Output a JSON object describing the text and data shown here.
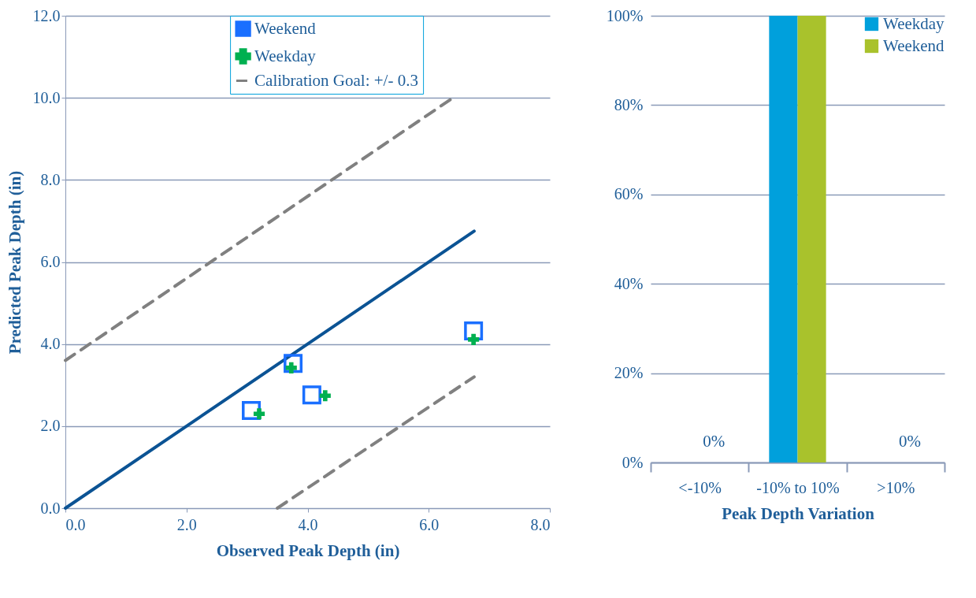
{
  "chart_data": [
    {
      "type": "scatter",
      "xlabel": "Observed Peak Depth (in)",
      "ylabel": "Predicted Peak Depth (in)",
      "xlim": [
        0,
        8
      ],
      "xticks": [
        {
          "value": 0,
          "label": "0.0"
        },
        {
          "value": 2,
          "label": "2.0"
        },
        {
          "value": 4,
          "label": "4.0"
        },
        {
          "value": 6,
          "label": "6.0"
        },
        {
          "value": 8,
          "label": "8.0"
        }
      ],
      "ylim": [
        0,
        12
      ],
      "yticks": [
        {
          "value": 0,
          "label": "0.0"
        },
        {
          "value": 2,
          "label": "2.0"
        },
        {
          "value": 4,
          "label": "4.0"
        },
        {
          "value": 6,
          "label": "6.0"
        },
        {
          "value": 8,
          "label": "8.0"
        },
        {
          "value": 10,
          "label": "10.0"
        },
        {
          "value": 12,
          "label": "12.0"
        }
      ],
      "grid": "y",
      "legend": "top",
      "series": [
        {
          "type": "scatter",
          "name": "Weekend",
          "color": "#1a6fff",
          "marker": "square",
          "x": [
            3.07,
            3.76,
            4.07,
            6.74
          ],
          "values": [
            2.38,
            3.53,
            2.76,
            4.32
          ]
        },
        {
          "type": "scatter",
          "name": "Weekday",
          "color": "#00b050",
          "marker": "cross",
          "x": [
            3.2,
            3.73,
            4.29,
            6.74
          ],
          "values": [
            2.3,
            3.42,
            2.74,
            4.11
          ]
        },
        {
          "type": "line",
          "name": "Calibration Goal: +/- 0.3",
          "color": "#808080",
          "line_style": "dashed",
          "x": [
            0,
            6.4
          ],
          "values": [
            3.6,
            10.0
          ]
        },
        {
          "type": "line",
          "color": "#808080",
          "line_style": "dashed",
          "x": [
            3.5,
            6.75
          ],
          "values": [
            0,
            3.2
          ]
        },
        {
          "type": "line",
          "color": "#0b5394",
          "line_style": "solid",
          "x": [
            0,
            6.75
          ],
          "values": [
            0,
            6.75
          ]
        }
      ]
    },
    {
      "type": "bar",
      "xlabel": "Peak Depth Variation",
      "categories": [
        "<-10%",
        "-10% to 10%",
        ">10%"
      ],
      "ylim": [
        0,
        100
      ],
      "yticks": [
        {
          "value": 0,
          "label": "0%"
        },
        {
          "value": 20,
          "label": "20%"
        },
        {
          "value": 40,
          "label": "40%"
        },
        {
          "value": 60,
          "label": "60%"
        },
        {
          "value": 80,
          "label": "80%"
        },
        {
          "value": 100,
          "label": "100%"
        }
      ],
      "grid": "y",
      "legend": "top right",
      "series": [
        {
          "name": "Weekday",
          "color": "#00a0dc",
          "values": [
            0,
            100,
            0
          ]
        },
        {
          "name": "Weekend",
          "color": "#a9c22c",
          "values": [
            0,
            100,
            0
          ],
          "value_labels": [
            "0%",
            null,
            "0%"
          ]
        }
      ]
    }
  ]
}
